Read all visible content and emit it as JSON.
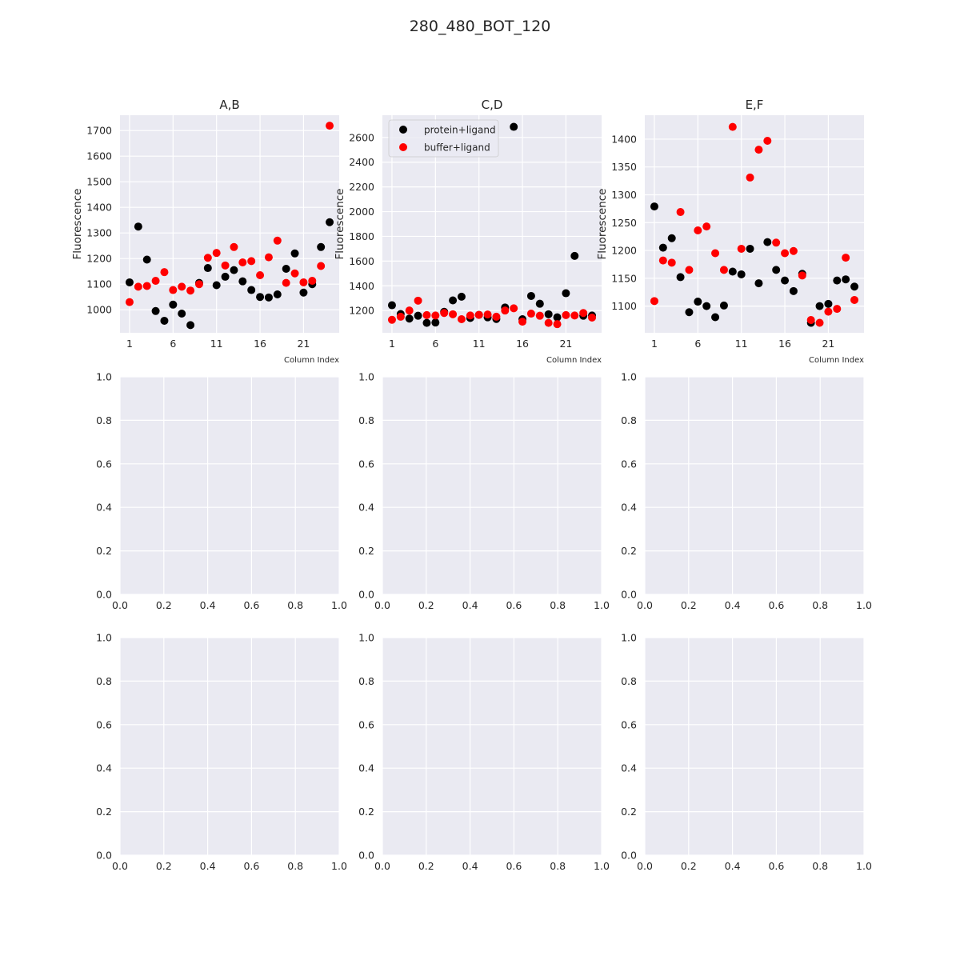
{
  "figure": {
    "title": "280_480_BOT_120"
  },
  "chart_data": [
    {
      "type": "scatter",
      "title": "A,B",
      "xlabel": "Column Index",
      "ylabel": "Fluorescence",
      "xticks": [
        1,
        6,
        11,
        16,
        21
      ],
      "yticks": [
        1000,
        1100,
        1200,
        1300,
        1400,
        1500,
        1600,
        1700
      ],
      "xlim": [
        -0.1,
        25.1
      ],
      "ylim": [
        910,
        1760
      ],
      "grid": true,
      "series": [
        {
          "name": "protein+ligand",
          "color": "#000000",
          "x": [
            1,
            2,
            3,
            4,
            5,
            6,
            7,
            8,
            9,
            10,
            11,
            12,
            13,
            14,
            15,
            16,
            17,
            18,
            19,
            20,
            21,
            22,
            23,
            24
          ],
          "y": [
            1107,
            1325,
            1196,
            995,
            957,
            1020,
            985,
            940,
            1105,
            1163,
            1096,
            1129,
            1155,
            1111,
            1077,
            1050,
            1048,
            1060,
            1160,
            1220,
            1067,
            1100,
            1245,
            1342
          ]
        },
        {
          "name": "buffer+ligand",
          "color": "#ff0000",
          "x": [
            1,
            2,
            3,
            4,
            5,
            6,
            7,
            8,
            9,
            10,
            11,
            12,
            13,
            14,
            15,
            16,
            17,
            18,
            19,
            20,
            21,
            22,
            23,
            24
          ],
          "y": [
            1030,
            1090,
            1093,
            1113,
            1147,
            1077,
            1090,
            1075,
            1100,
            1203,
            1222,
            1173,
            1245,
            1185,
            1190,
            1135,
            1205,
            1270,
            1105,
            1142,
            1107,
            1113,
            1171,
            1719
          ]
        }
      ]
    },
    {
      "type": "scatter",
      "title": "C,D",
      "xlabel": "Column Index",
      "ylabel": "Fluorescence",
      "xticks": [
        1,
        6,
        11,
        16,
        21
      ],
      "yticks": [
        1200,
        1400,
        1600,
        1800,
        2000,
        2200,
        2400,
        2600
      ],
      "xlim": [
        -0.1,
        25.1
      ],
      "ylim": [
        1020,
        2780
      ],
      "grid": true,
      "legend": {
        "position": "top-left",
        "entries": [
          "protein+ligand",
          "buffer+ligand"
        ]
      },
      "series": [
        {
          "name": "protein+ligand",
          "color": "#000000",
          "x": [
            1,
            2,
            3,
            4,
            5,
            6,
            7,
            8,
            9,
            10,
            11,
            12,
            13,
            14,
            15,
            16,
            17,
            18,
            19,
            20,
            21,
            22,
            23,
            24
          ],
          "y": [
            1243,
            1172,
            1135,
            1158,
            1100,
            1103,
            1190,
            1282,
            1312,
            1140,
            1165,
            1145,
            1132,
            1225,
            2686,
            1130,
            1318,
            1255,
            1170,
            1145,
            1340,
            1642,
            1158,
            1160
          ]
        },
        {
          "name": "buffer+ligand",
          "color": "#ff0000",
          "x": [
            1,
            2,
            3,
            4,
            5,
            6,
            7,
            8,
            9,
            10,
            11,
            12,
            13,
            14,
            15,
            16,
            17,
            18,
            19,
            20,
            21,
            22,
            23,
            24
          ],
          "y": [
            1125,
            1150,
            1200,
            1280,
            1163,
            1160,
            1180,
            1170,
            1130,
            1160,
            1165,
            1168,
            1150,
            1200,
            1218,
            1110,
            1175,
            1158,
            1100,
            1090,
            1163,
            1160,
            1180,
            1143
          ]
        }
      ]
    },
    {
      "type": "scatter",
      "title": "E,F",
      "xlabel": "Column Index",
      "ylabel": "Fluorescence",
      "xticks": [
        1,
        6,
        11,
        16,
        21
      ],
      "yticks": [
        1100,
        1150,
        1200,
        1250,
        1300,
        1350,
        1400
      ],
      "xlim": [
        -0.1,
        25.1
      ],
      "ylim": [
        1052,
        1443
      ],
      "grid": true,
      "series": [
        {
          "name": "protein+ligand",
          "color": "#000000",
          "x": [
            1,
            2,
            3,
            4,
            5,
            6,
            7,
            8,
            9,
            10,
            11,
            12,
            13,
            14,
            15,
            16,
            17,
            18,
            19,
            20,
            21,
            22,
            23,
            24
          ],
          "y": [
            1279,
            1205,
            1222,
            1152,
            1089,
            1108,
            1100,
            1080,
            1101,
            1162,
            1157,
            1203,
            1141,
            1215,
            1165,
            1146,
            1127,
            1158,
            1070,
            1100,
            1104,
            1146,
            1148,
            1135
          ]
        },
        {
          "name": "buffer+ligand",
          "color": "#ff0000",
          "x": [
            1,
            2,
            3,
            4,
            5,
            6,
            7,
            8,
            9,
            10,
            11,
            12,
            13,
            14,
            15,
            16,
            17,
            18,
            19,
            20,
            21,
            22,
            23,
            24
          ],
          "y": [
            1109,
            1182,
            1178,
            1269,
            1165,
            1236,
            1243,
            1195,
            1165,
            1422,
            1203,
            1331,
            1381,
            1397,
            1214,
            1195,
            1199,
            1155,
            1075,
            1070,
            1090,
            1095,
            1187,
            1111
          ]
        }
      ]
    },
    {
      "type": "scatter",
      "title": "",
      "xticks": [
        "0.0",
        "0.2",
        "0.4",
        "0.6",
        "0.8",
        "1.0"
      ],
      "yticks": [
        "0.0",
        "0.2",
        "0.4",
        "0.6",
        "0.8",
        "1.0"
      ],
      "xlim": [
        0,
        1
      ],
      "ylim": [
        0,
        1
      ],
      "grid": true,
      "series": []
    },
    {
      "type": "scatter",
      "title": "",
      "xticks": [
        "0.0",
        "0.2",
        "0.4",
        "0.6",
        "0.8",
        "1.0"
      ],
      "yticks": [
        "0.0",
        "0.2",
        "0.4",
        "0.6",
        "0.8",
        "1.0"
      ],
      "xlim": [
        0,
        1
      ],
      "ylim": [
        0,
        1
      ],
      "grid": true,
      "series": []
    },
    {
      "type": "scatter",
      "title": "",
      "xticks": [
        "0.0",
        "0.2",
        "0.4",
        "0.6",
        "0.8",
        "1.0"
      ],
      "yticks": [
        "0.0",
        "0.2",
        "0.4",
        "0.6",
        "0.8",
        "1.0"
      ],
      "xlim": [
        0,
        1
      ],
      "ylim": [
        0,
        1
      ],
      "grid": true,
      "series": []
    },
    {
      "type": "scatter",
      "title": "",
      "xticks": [
        "0.0",
        "0.2",
        "0.4",
        "0.6",
        "0.8",
        "1.0"
      ],
      "yticks": [
        "0.0",
        "0.2",
        "0.4",
        "0.6",
        "0.8",
        "1.0"
      ],
      "xlim": [
        0,
        1
      ],
      "ylim": [
        0,
        1
      ],
      "grid": true,
      "series": []
    },
    {
      "type": "scatter",
      "title": "",
      "xticks": [
        "0.0",
        "0.2",
        "0.4",
        "0.6",
        "0.8",
        "1.0"
      ],
      "yticks": [
        "0.0",
        "0.2",
        "0.4",
        "0.6",
        "0.8",
        "1.0"
      ],
      "xlim": [
        0,
        1
      ],
      "ylim": [
        0,
        1
      ],
      "grid": true,
      "series": []
    },
    {
      "type": "scatter",
      "title": "",
      "xticks": [
        "0.0",
        "0.2",
        "0.4",
        "0.6",
        "0.8",
        "1.0"
      ],
      "yticks": [
        "0.0",
        "0.2",
        "0.4",
        "0.6",
        "0.8",
        "1.0"
      ],
      "xlim": [
        0,
        1
      ],
      "ylim": [
        0,
        1
      ],
      "grid": true,
      "series": []
    }
  ]
}
